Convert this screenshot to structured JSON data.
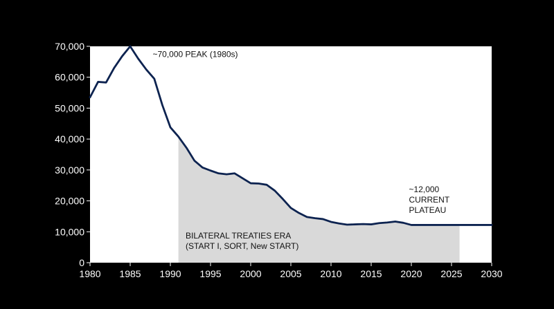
{
  "chart_data": {
    "type": "line",
    "title": "",
    "xlabel": "",
    "ylabel": "",
    "xlim": [
      1980,
      2030
    ],
    "ylim": [
      0,
      70000
    ],
    "x_ticks": [
      1980,
      1985,
      1990,
      1995,
      2000,
      2005,
      2010,
      2015,
      2020,
      2025,
      2030
    ],
    "y_ticks": [
      0,
      10000,
      20000,
      30000,
      40000,
      50000,
      60000,
      70000
    ],
    "y_tick_labels": [
      "0",
      "10,000",
      "20,000",
      "30,000",
      "40,000",
      "50,000",
      "60,000",
      "70,000"
    ],
    "x_tick_labels": [
      "1980",
      "1985",
      "1990",
      "1995",
      "2000",
      "2005",
      "2010",
      "2015",
      "2020",
      "2025",
      "2030"
    ],
    "grid": false,
    "series": [
      {
        "x": [
          1980,
          1981,
          1982,
          1983,
          1984,
          1985,
          1986,
          1987,
          1988,
          1989,
          1990,
          1991,
          1992,
          1993,
          1994,
          1995,
          1996,
          1997,
          1998,
          1999,
          2000,
          2001,
          2002,
          2003,
          2004,
          2005,
          2006,
          2007,
          2008,
          2009,
          2010,
          2011,
          2012,
          2013,
          2014,
          2015,
          2016,
          2017,
          2018,
          2019,
          2020,
          2021,
          2022,
          2023,
          2024,
          2025,
          2026,
          2027,
          2028,
          2029,
          2030
        ],
        "values": [
          53500,
          58500,
          58300,
          63000,
          66800,
          70000,
          66000,
          62500,
          59500,
          51000,
          43800,
          40800,
          37200,
          33000,
          30800,
          29800,
          28900,
          28600,
          28900,
          27300,
          25700,
          25600,
          25200,
          23300,
          20600,
          17700,
          16100,
          14800,
          14400,
          14100,
          13200,
          12700,
          12300,
          12400,
          12500,
          12400,
          12800,
          13000,
          13300,
          12900,
          12200,
          12200,
          12200,
          12200,
          12200,
          12200,
          12200,
          12200,
          12200,
          12200,
          12200
        ],
        "color": "#0d2350"
      }
    ],
    "shaded_region": {
      "x_start": 1991,
      "x_end": 2026,
      "color": "#d9d9d9",
      "label_lines": [
        "BILATERAL TREATIES ERA",
        "(START I, SORT, New START)"
      ]
    },
    "annotations": [
      {
        "text_lines": [
          "~70,000 PEAK (1980s)"
        ],
        "x": 1987.8,
        "y": 66500
      },
      {
        "text_lines": [
          "~12,000",
          "CURRENT",
          "PLATEAU"
        ],
        "x": 2019.7,
        "y": 22800
      }
    ],
    "colors": {
      "background": "#000000",
      "plot_area": "#ffffff",
      "line": "#0d2350",
      "shade": "#d9d9d9",
      "tick_text": "#ffffff",
      "annotation_text": "#111111"
    }
  }
}
